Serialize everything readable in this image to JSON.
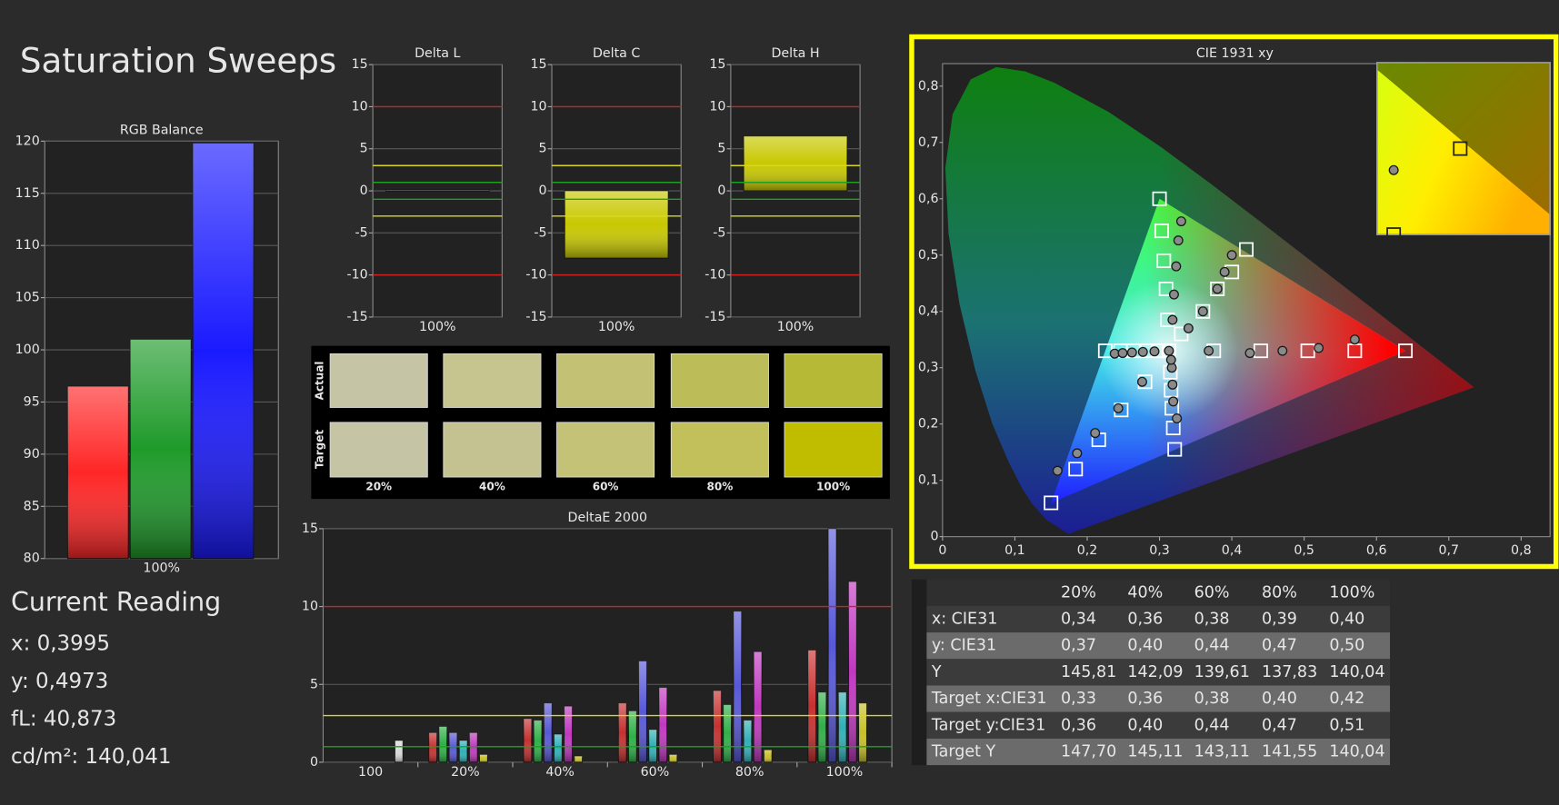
{
  "title": "Saturation Sweeps",
  "chart_data": [
    {
      "type": "bar",
      "title": "RGB Balance",
      "categories": [
        "100%"
      ],
      "series": [
        {
          "color": "#ff2626",
          "values": [
            96.5
          ]
        },
        {
          "color": "#1f9a2a",
          "values": [
            101
          ]
        },
        {
          "color": "#1a1aff",
          "values": [
            119.8
          ]
        }
      ],
      "ylim": [
        80,
        120
      ],
      "yticks": [
        80,
        85,
        90,
        95,
        100,
        105,
        110,
        115,
        120
      ],
      "grid": true
    },
    {
      "type": "bar",
      "title": "Delta L",
      "categories": [
        "100%"
      ],
      "values": [
        0.1
      ],
      "color": "#c8c800",
      "ylim": [
        -15,
        15
      ],
      "yticks": [
        -15,
        -10,
        -5,
        0,
        5,
        10,
        15
      ],
      "grid": true,
      "reference_lines": [
        {
          "value": 10,
          "color": "#d02020"
        },
        {
          "value": -10,
          "color": "#d02020"
        },
        {
          "value": 3,
          "color": "#d8d820"
        },
        {
          "value": -3,
          "color": "#d8d820"
        },
        {
          "value": 1,
          "color": "#20a020"
        },
        {
          "value": -1,
          "color": "#20a020"
        }
      ]
    },
    {
      "type": "bar",
      "title": "Delta C",
      "categories": [
        "100%"
      ],
      "values": [
        -8
      ],
      "color": "#c8c800",
      "ylim": [
        -15,
        15
      ],
      "yticks": [
        -15,
        -10,
        -5,
        0,
        5,
        10,
        15
      ],
      "grid": true,
      "reference_lines": [
        {
          "value": 10,
          "color": "#d02020"
        },
        {
          "value": -10,
          "color": "#d02020"
        },
        {
          "value": 3,
          "color": "#d8d820"
        },
        {
          "value": -3,
          "color": "#d8d820"
        },
        {
          "value": 1,
          "color": "#20a020"
        },
        {
          "value": -1,
          "color": "#20a020"
        }
      ]
    },
    {
      "type": "bar",
      "title": "Delta H",
      "categories": [
        "100%"
      ],
      "values": [
        6.5
      ],
      "color": "#c8c800",
      "ylim": [
        -15,
        15
      ],
      "yticks": [
        -15,
        -10,
        -5,
        0,
        5,
        10,
        15
      ],
      "grid": true,
      "reference_lines": [
        {
          "value": 10,
          "color": "#d02020"
        },
        {
          "value": -10,
          "color": "#d02020"
        },
        {
          "value": 3,
          "color": "#d8d820"
        },
        {
          "value": -3,
          "color": "#d8d820"
        },
        {
          "value": 1,
          "color": "#20a020"
        },
        {
          "value": -1,
          "color": "#20a020"
        }
      ]
    },
    {
      "type": "bar",
      "title": "DeltaE 2000",
      "categories": [
        "100",
        "20%",
        "40%",
        "60%",
        "80%",
        "100%"
      ],
      "series": [
        {
          "color": "#c83030",
          "values": [
            null,
            1.9,
            2.8,
            3.8,
            4.6,
            7.2
          ]
        },
        {
          "color": "#30b048",
          "values": [
            null,
            2.3,
            2.7,
            3.3,
            3.7,
            4.5
          ]
        },
        {
          "color": "#5858d8",
          "values": [
            null,
            1.9,
            3.8,
            6.5,
            9.7,
            15
          ]
        },
        {
          "color": "#30b0b8",
          "values": [
            null,
            1.4,
            1.8,
            2.1,
            2.7,
            4.5
          ]
        },
        {
          "color": "#c038c0",
          "values": [
            null,
            1.9,
            3.6,
            4.8,
            7.1,
            11.6
          ]
        },
        {
          "color": "#c8c028",
          "values": [
            null,
            0.5,
            0.4,
            0.5,
            0.8,
            3.8
          ]
        },
        {
          "color": "#d8d8d8",
          "values": [
            1.4,
            null,
            null,
            null,
            null,
            null
          ]
        }
      ],
      "ylim": [
        0,
        15
      ],
      "yticks": [
        0,
        5,
        10,
        15
      ],
      "grid": true,
      "reference_lines": [
        {
          "value": 10,
          "color": "#d02020"
        },
        {
          "value": 3,
          "color": "#d8d820"
        },
        {
          "value": 1,
          "color": "#20a020"
        }
      ]
    },
    {
      "type": "scatter",
      "title": "CIE 1931 xy",
      "xlim": [
        0,
        0.84
      ],
      "ylim": [
        0,
        0.84
      ],
      "xticks": [
        0,
        {
          "value": 0.1,
          "label": "0,1"
        },
        {
          "value": 0.2,
          "label": "0,2"
        },
        {
          "value": 0.3,
          "label": "0,3"
        },
        {
          "value": 0.4,
          "label": "0,4"
        },
        {
          "value": 0.5,
          "label": "0,5"
        },
        {
          "value": 0.6,
          "label": "0,6"
        },
        {
          "value": 0.7,
          "label": "0,7"
        },
        {
          "value": 0.8,
          "label": "0,8"
        }
      ],
      "yticks": [
        0,
        {
          "value": 0.1,
          "label": "0,1"
        },
        {
          "value": 0.2,
          "label": "0,2"
        },
        {
          "value": 0.3,
          "label": "0,3"
        },
        {
          "value": 0.4,
          "label": "0,4"
        },
        {
          "value": 0.5,
          "label": "0,5"
        },
        {
          "value": 0.6,
          "label": "0,6"
        },
        {
          "value": 0.7,
          "label": "0,7"
        },
        {
          "value": 0.8,
          "label": "0,8"
        }
      ],
      "gamut": {
        "x": [
          0.64,
          0.3,
          0.15
        ],
        "y": [
          0.33,
          0.6,
          0.06
        ]
      },
      "inset": {
        "xlim": [
          0.395,
          0.447
        ],
        "ylim": [
          0.47,
          0.55
        ]
      },
      "highlight_color": "#ffff00",
      "series": [
        {
          "marker": "square",
          "color": "#ffffff",
          "x": [
            0.64,
            0.57,
            0.505,
            0.44,
            0.375,
            0.3,
            0.303,
            0.306,
            0.309,
            0.311,
            0.15,
            0.184,
            0.216,
            0.247,
            0.28,
            0.225,
            0.246,
            0.264,
            0.283,
            0.298,
            0.321,
            0.319,
            0.317,
            0.316,
            0.315,
            0.33,
            0.36,
            0.38,
            0.4,
            0.42,
            0.313
          ],
          "y": [
            0.33,
            0.33,
            0.33,
            0.33,
            0.33,
            0.6,
            0.543,
            0.49,
            0.44,
            0.385,
            0.06,
            0.12,
            0.172,
            0.225,
            0.275,
            0.33,
            0.33,
            0.33,
            0.33,
            0.33,
            0.155,
            0.193,
            0.228,
            0.26,
            0.292,
            0.36,
            0.4,
            0.44,
            0.47,
            0.51,
            0.33
          ]
        },
        {
          "marker": "circle",
          "color": "#8a8a8a",
          "x": [
            0.57,
            0.52,
            0.47,
            0.425,
            0.368,
            0.33,
            0.326,
            0.323,
            0.32,
            0.318,
            0.159,
            0.186,
            0.211,
            0.243,
            0.276,
            0.238,
            0.249,
            0.262,
            0.277,
            0.293,
            0.324,
            0.319,
            0.318,
            0.317,
            0.316,
            0.34,
            0.36,
            0.38,
            0.39,
            0.4,
            0.313
          ],
          "y": [
            0.35,
            0.335,
            0.33,
            0.326,
            0.33,
            0.56,
            0.526,
            0.48,
            0.43,
            0.385,
            0.117,
            0.148,
            0.184,
            0.228,
            0.275,
            0.325,
            0.326,
            0.327,
            0.328,
            0.329,
            0.21,
            0.24,
            0.27,
            0.3,
            0.314,
            0.37,
            0.4,
            0.44,
            0.47,
            0.5,
            0.33
          ]
        }
      ]
    }
  ],
  "swatches": {
    "row_labels": [
      "Actual",
      "Target"
    ],
    "columns": [
      "20%",
      "40%",
      "60%",
      "80%",
      "100%"
    ],
    "actual": [
      "#c5c4a5",
      "#c6c48f",
      "#c3c274",
      "#bcbd58",
      "#b5b935"
    ],
    "target": [
      "#c5c4a5",
      "#c4c290",
      "#c4c277",
      "#c2c05a",
      "#c0bc00"
    ]
  },
  "reading": {
    "title": "Current Reading",
    "lines": [
      "x: 0,3995",
      "y: 0,4973",
      "fL: 40,873",
      "cd/m²: 140,041"
    ]
  },
  "table": {
    "header": [
      "20%",
      "40%",
      "60%",
      "80%",
      "100%"
    ],
    "rows": [
      {
        "label": "x: CIE31",
        "cells": [
          "0,34",
          "0,36",
          "0,38",
          "0,39",
          "0,40"
        ]
      },
      {
        "label": "y: CIE31",
        "cells": [
          "0,37",
          "0,40",
          "0,44",
          "0,47",
          "0,50"
        ]
      },
      {
        "label": "Y",
        "cells": [
          "145,81",
          "142,09",
          "139,61",
          "137,83",
          "140,04"
        ]
      },
      {
        "label": "Target x:CIE31",
        "cells": [
          "0,33",
          "0,36",
          "0,38",
          "0,40",
          "0,42"
        ]
      },
      {
        "label": "Target y:CIE31",
        "cells": [
          "0,36",
          "0,40",
          "0,44",
          "0,47",
          "0,51"
        ]
      },
      {
        "label": "Target Y",
        "cells": [
          "147,70",
          "145,11",
          "143,11",
          "141,55",
          "140,04"
        ]
      }
    ]
  }
}
